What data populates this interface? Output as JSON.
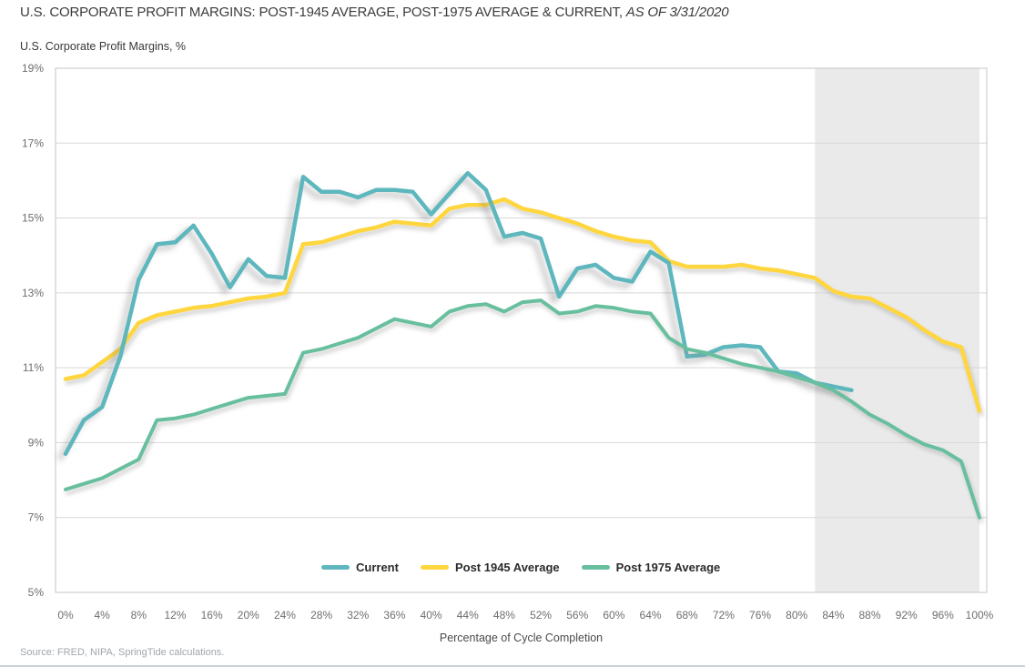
{
  "title": {
    "main": "U.S. CORPORATE PROFIT MARGINS: POST-1945 AVERAGE, POST-1975 AVERAGE & CURRENT,",
    "as_of": "AS OF 3/31/2020"
  },
  "subtitle": "U.S. Corporate Profit Margins, %",
  "source": "Source: FRED, NIPA, SpringTide calculations.",
  "colors": {
    "current_line": "#5db7bd",
    "post1945_line": "#ffd63d",
    "post1975_line": "#68bf9e",
    "highlight_band": "#eaeaea",
    "gridline": "#d7d7d7",
    "plot_border": "#c6c6c6",
    "axis_text": "#6e6e6e",
    "title_text": "#3b3b3b",
    "legend_text": "#2b2b2b",
    "source_text": "#a1a6aa"
  },
  "chart_data": {
    "type": "line",
    "title": "U.S. Corporate Profit Margins: Post-1945 Average, Post-1975 Average & Current, as of 3/31/2020",
    "xlabel": "Percentage of Cycle Completion",
    "ylabel": "U.S. Corporate Profit Margins, %",
    "xlim": [
      0,
      100
    ],
    "ylim": [
      5,
      19
    ],
    "grid": "horizontal",
    "legend_position": "bottom-center-inside",
    "x_ticks": [
      "0%",
      "4%",
      "8%",
      "12%",
      "16%",
      "20%",
      "24%",
      "28%",
      "32%",
      "36%",
      "40%",
      "44%",
      "48%",
      "52%",
      "56%",
      "60%",
      "64%",
      "68%",
      "72%",
      "76%",
      "80%",
      "84%",
      "88%",
      "92%",
      "96%",
      "100%"
    ],
    "y_ticks": [
      "19%",
      "17%",
      "15%",
      "13%",
      "11%",
      "9%",
      "7%",
      "5%"
    ],
    "highlight_band": {
      "x_start": 82,
      "x_end": 100,
      "color": "#eaeaea"
    },
    "x_step": 2,
    "series": [
      {
        "name": "Current",
        "color": "#5db7bd",
        "x_start": 0,
        "values": [
          8.7,
          9.6,
          9.95,
          11.3,
          13.35,
          14.3,
          14.35,
          14.8,
          14.05,
          13.15,
          13.9,
          13.45,
          13.4,
          16.1,
          15.7,
          15.7,
          15.55,
          15.75,
          15.75,
          15.7,
          15.1,
          15.65,
          16.2,
          15.75,
          14.5,
          14.6,
          14.45,
          12.9,
          13.65,
          13.75,
          13.4,
          13.3,
          14.1,
          13.8,
          11.3,
          11.35,
          11.55,
          11.6,
          11.55,
          10.9,
          10.85,
          10.6,
          10.5,
          10.4
        ]
      },
      {
        "name": "Post 1945 Average",
        "color": "#ffd63d",
        "x_start": 0,
        "values": [
          10.7,
          10.8,
          11.15,
          11.5,
          12.2,
          12.4,
          12.5,
          12.6,
          12.65,
          12.75,
          12.85,
          12.9,
          13.0,
          14.3,
          14.35,
          14.5,
          14.65,
          14.75,
          14.9,
          14.85,
          14.8,
          15.25,
          15.35,
          15.35,
          15.5,
          15.25,
          15.15,
          15.0,
          14.85,
          14.65,
          14.5,
          14.4,
          14.35,
          13.85,
          13.7,
          13.7,
          13.7,
          13.75,
          13.65,
          13.6,
          13.5,
          13.4,
          13.05,
          12.9,
          12.85,
          12.6,
          12.35,
          12.0,
          11.7,
          11.55,
          9.85
        ]
      },
      {
        "name": "Post 1975 Average",
        "color": "#68bf9e",
        "x_start": 0,
        "values": [
          7.75,
          7.9,
          8.05,
          8.3,
          8.55,
          9.6,
          9.65,
          9.75,
          9.9,
          10.05,
          10.2,
          10.25,
          10.3,
          11.4,
          11.5,
          11.65,
          11.8,
          12.05,
          12.3,
          12.2,
          12.1,
          12.5,
          12.65,
          12.7,
          12.5,
          12.75,
          12.8,
          12.45,
          12.5,
          12.65,
          12.6,
          12.5,
          12.45,
          11.8,
          11.5,
          11.4,
          11.25,
          11.1,
          11.0,
          10.9,
          10.75,
          10.6,
          10.4,
          10.1,
          9.75,
          9.5,
          9.2,
          8.95,
          8.8,
          8.5,
          7.0
        ]
      }
    ]
  }
}
